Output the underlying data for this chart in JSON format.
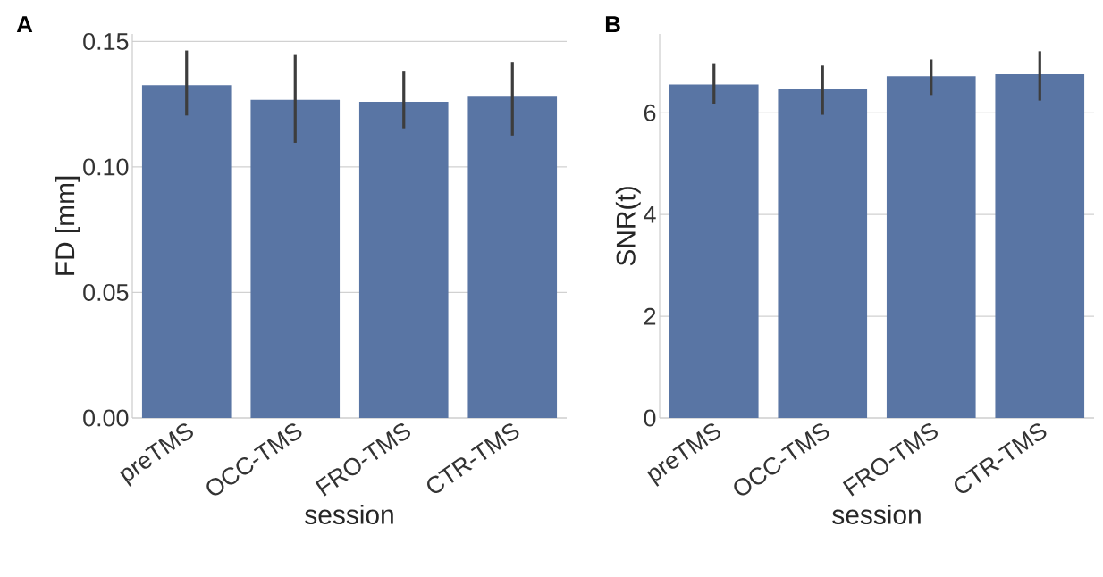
{
  "chart_data": [
    {
      "type": "bar",
      "categories": [
        "preTMS",
        "OCC-TMS",
        "FRO-TMS",
        "CTR-TMS"
      ],
      "values": [
        0.1326,
        0.1268,
        0.126,
        0.128
      ],
      "errors": [
        [
          0.1205,
          0.1464
        ],
        [
          0.1096,
          0.1446
        ],
        [
          0.1154,
          0.138
        ],
        [
          0.1125,
          0.1419
        ]
      ],
      "color": "#5975a4",
      "xlabel": "session",
      "ylabel": "FD [mm]",
      "ylim": [
        0,
        0.153
      ],
      "yticks": [
        {
          "value": 0,
          "label": "0.00"
        },
        {
          "value": 0.05,
          "label": "0.05"
        },
        {
          "value": 0.1,
          "label": "0.10"
        },
        {
          "value": 0.15,
          "label": "0.15"
        }
      ],
      "grid": "y",
      "annotations": [
        "A"
      ]
    },
    {
      "type": "bar",
      "categories": [
        "preTMS",
        "OCC-TMS",
        "FRO-TMS",
        "CTR-TMS"
      ],
      "values": [
        6.56,
        6.46,
        6.72,
        6.76
      ],
      "errors": [
        [
          6.18,
          6.96
        ],
        [
          5.96,
          6.93
        ],
        [
          6.35,
          7.05
        ],
        [
          6.24,
          7.21
        ]
      ],
      "color": "#5975a4",
      "xlabel": "session",
      "ylabel": "SNR(t)",
      "ylim": [
        0,
        7.55
      ],
      "yticks": [
        0,
        2,
        4,
        6
      ],
      "grid": "y",
      "annotations": [
        "B"
      ]
    }
  ]
}
